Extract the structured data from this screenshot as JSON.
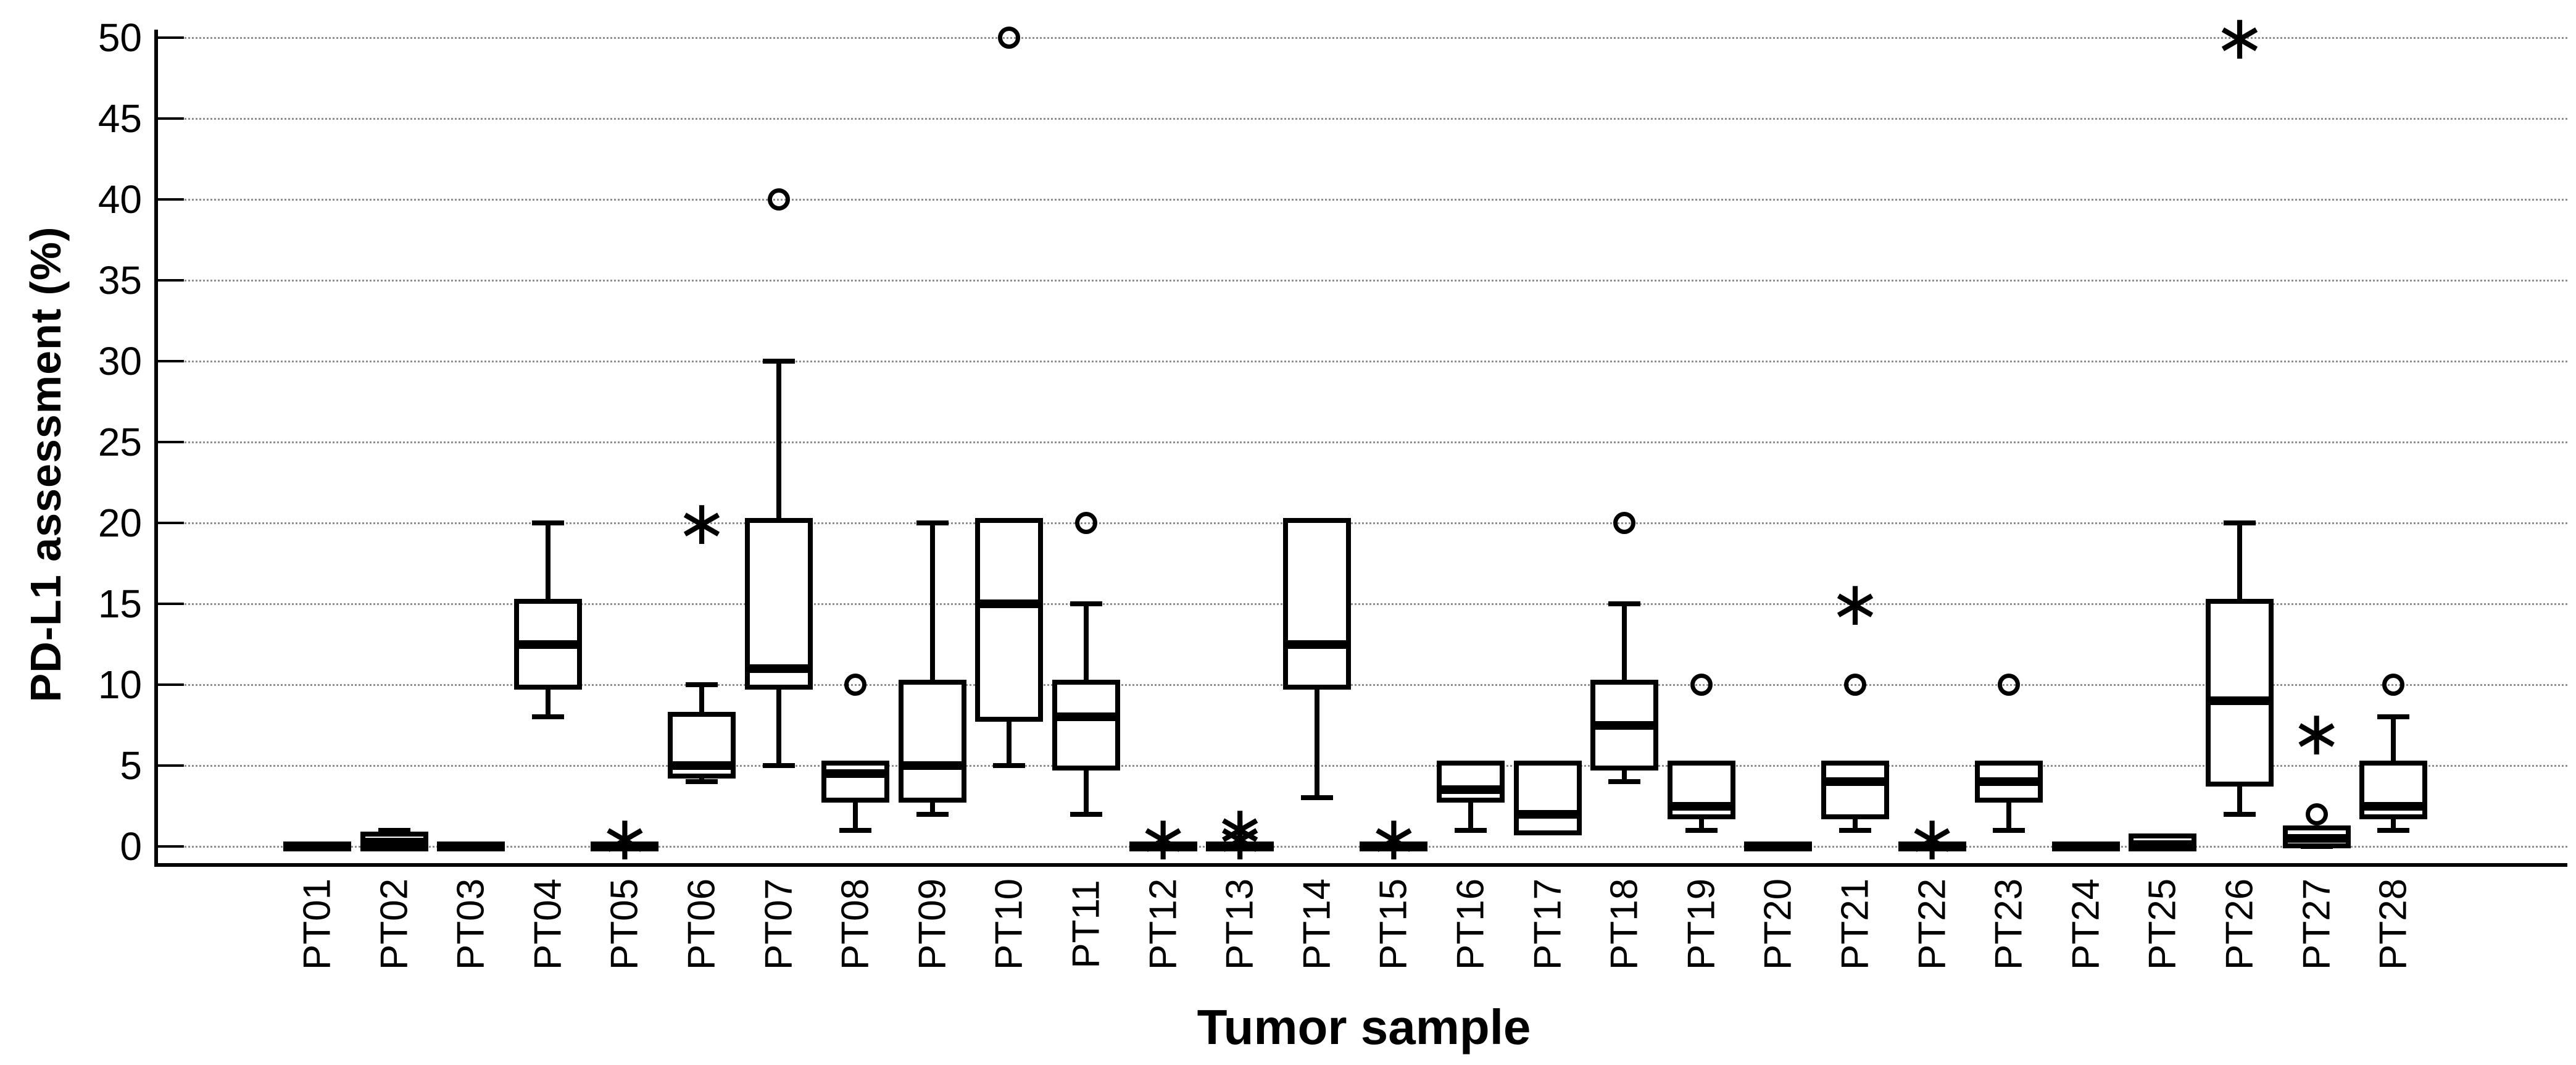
{
  "chart_data": {
    "type": "boxplot",
    "title": "",
    "xlabel": "Tumor sample",
    "ylabel": "PD-L1 assessment (%)",
    "ylim": [
      0,
      50
    ],
    "y_ticks": [
      0,
      5,
      10,
      15,
      20,
      25,
      30,
      35,
      40,
      45,
      50
    ],
    "grid": true,
    "legend": "none",
    "categories": [
      "PT01",
      "PT02",
      "PT03",
      "PT04",
      "PT05",
      "PT06",
      "PT07",
      "PT08",
      "PT09",
      "PT10",
      "PT11",
      "PT12",
      "PT13",
      "PT14",
      "PT15",
      "PT16",
      "PT17",
      "PT18",
      "PT19",
      "PT20",
      "PT21",
      "PT22",
      "PT23",
      "PT24",
      "PT25",
      "PT26",
      "PT27",
      "PT28"
    ],
    "boxes": [
      {
        "label": "PT01",
        "whisker_low": 0,
        "q1": 0,
        "median": 0,
        "q3": 0,
        "whisker_high": 0,
        "outliers_circle": [],
        "outliers_star": []
      },
      {
        "label": "PT02",
        "whisker_low": 0,
        "q1": 0,
        "median": 0.25,
        "q3": 0.6,
        "whisker_high": 1,
        "outliers_circle": [],
        "outliers_star": []
      },
      {
        "label": "PT03",
        "whisker_low": 0,
        "q1": 0,
        "median": 0,
        "q3": 0,
        "whisker_high": 0,
        "outliers_circle": [],
        "outliers_star": []
      },
      {
        "label": "PT04",
        "whisker_low": 8,
        "q1": 10,
        "median": 12.5,
        "q3": 15,
        "whisker_high": 20,
        "outliers_circle": [],
        "outliers_star": []
      },
      {
        "label": "PT05",
        "whisker_low": 0,
        "q1": 0,
        "median": 0,
        "q3": 0,
        "whisker_high": 0,
        "outliers_circle": [],
        "outliers_star": [
          0.5
        ]
      },
      {
        "label": "PT06",
        "whisker_low": 4,
        "q1": 4.5,
        "median": 5,
        "q3": 8,
        "whisker_high": 10,
        "outliers_circle": [],
        "outliers_star": [
          20
        ]
      },
      {
        "label": "PT07",
        "whisker_low": 5,
        "q1": 10,
        "median": 11,
        "q3": 20,
        "whisker_high": 30,
        "outliers_circle": [
          40
        ],
        "outliers_star": []
      },
      {
        "label": "PT08",
        "whisker_low": 1,
        "q1": 3,
        "median": 4.5,
        "q3": 5,
        "whisker_high": 5,
        "outliers_circle": [
          10
        ],
        "outliers_star": []
      },
      {
        "label": "PT09",
        "whisker_low": 2,
        "q1": 3,
        "median": 5,
        "q3": 10,
        "whisker_high": 20,
        "outliers_circle": [],
        "outliers_star": []
      },
      {
        "label": "PT10",
        "whisker_low": 5,
        "q1": 8,
        "median": 15,
        "q3": 20,
        "whisker_high": 20,
        "outliers_circle": [
          50
        ],
        "outliers_star": []
      },
      {
        "label": "PT11",
        "whisker_low": 2,
        "q1": 5,
        "median": 8,
        "q3": 10,
        "whisker_high": 15,
        "outliers_circle": [
          20
        ],
        "outliers_star": []
      },
      {
        "label": "PT12",
        "whisker_low": 0,
        "q1": 0,
        "median": 0,
        "q3": 0,
        "whisker_high": 0,
        "outliers_circle": [],
        "outliers_star": [
          0.5
        ]
      },
      {
        "label": "PT13",
        "whisker_low": 0,
        "q1": 0,
        "median": 0,
        "q3": 0,
        "whisker_high": 0,
        "outliers_circle": [],
        "outliers_star": [
          0.5,
          1.1
        ]
      },
      {
        "label": "PT14",
        "whisker_low": 3,
        "q1": 10,
        "median": 12.5,
        "q3": 20,
        "whisker_high": 20,
        "outliers_circle": [],
        "outliers_star": []
      },
      {
        "label": "PT15",
        "whisker_low": 0,
        "q1": 0,
        "median": 0,
        "q3": 0,
        "whisker_high": 0,
        "outliers_circle": [],
        "outliers_star": [
          0.5
        ]
      },
      {
        "label": "PT16",
        "whisker_low": 1,
        "q1": 3,
        "median": 3.5,
        "q3": 5,
        "whisker_high": 5,
        "outliers_circle": [],
        "outliers_star": []
      },
      {
        "label": "PT17",
        "whisker_low": 1,
        "q1": 1,
        "median": 2,
        "q3": 5,
        "whisker_high": 5,
        "outliers_circle": [],
        "outliers_star": []
      },
      {
        "label": "PT18",
        "whisker_low": 4,
        "q1": 5,
        "median": 7.5,
        "q3": 10,
        "whisker_high": 15,
        "outliers_circle": [
          20
        ],
        "outliers_star": []
      },
      {
        "label": "PT19",
        "whisker_low": 1,
        "q1": 2,
        "median": 2.5,
        "q3": 5,
        "whisker_high": 5,
        "outliers_circle": [
          10
        ],
        "outliers_star": []
      },
      {
        "label": "PT20",
        "whisker_low": 0,
        "q1": 0,
        "median": 0,
        "q3": 0,
        "whisker_high": 0,
        "outliers_circle": [],
        "outliers_star": []
      },
      {
        "label": "PT21",
        "whisker_low": 1,
        "q1": 2,
        "median": 4,
        "q3": 5,
        "whisker_high": 5,
        "outliers_circle": [
          10
        ],
        "outliers_star": [
          15
        ]
      },
      {
        "label": "PT22",
        "whisker_low": 0,
        "q1": 0,
        "median": 0,
        "q3": 0,
        "whisker_high": 0,
        "outliers_circle": [],
        "outliers_star": [
          0.5
        ]
      },
      {
        "label": "PT23",
        "whisker_low": 1,
        "q1": 3,
        "median": 4,
        "q3": 5,
        "whisker_high": 5,
        "outliers_circle": [
          10
        ],
        "outliers_star": []
      },
      {
        "label": "PT24",
        "whisker_low": 0,
        "q1": 0,
        "median": 0,
        "q3": 0,
        "whisker_high": 0,
        "outliers_circle": [],
        "outliers_star": []
      },
      {
        "label": "PT25",
        "whisker_low": 0,
        "q1": 0,
        "median": 0.1,
        "q3": 0.5,
        "whisker_high": 0.5,
        "outliers_circle": [],
        "outliers_star": []
      },
      {
        "label": "PT26",
        "whisker_low": 2,
        "q1": 4,
        "median": 9,
        "q3": 15,
        "whisker_high": 20,
        "outliers_circle": [],
        "outliers_star": [
          50
        ]
      },
      {
        "label": "PT27",
        "whisker_low": 0,
        "q1": 0.2,
        "median": 0.5,
        "q3": 1,
        "whisker_high": 1,
        "outliers_circle": [
          2
        ],
        "outliers_star": [
          7
        ]
      },
      {
        "label": "PT28",
        "whisker_low": 1,
        "q1": 2,
        "median": 2.5,
        "q3": 5,
        "whisker_high": 8,
        "outliers_circle": [
          10
        ],
        "outliers_star": []
      }
    ]
  }
}
